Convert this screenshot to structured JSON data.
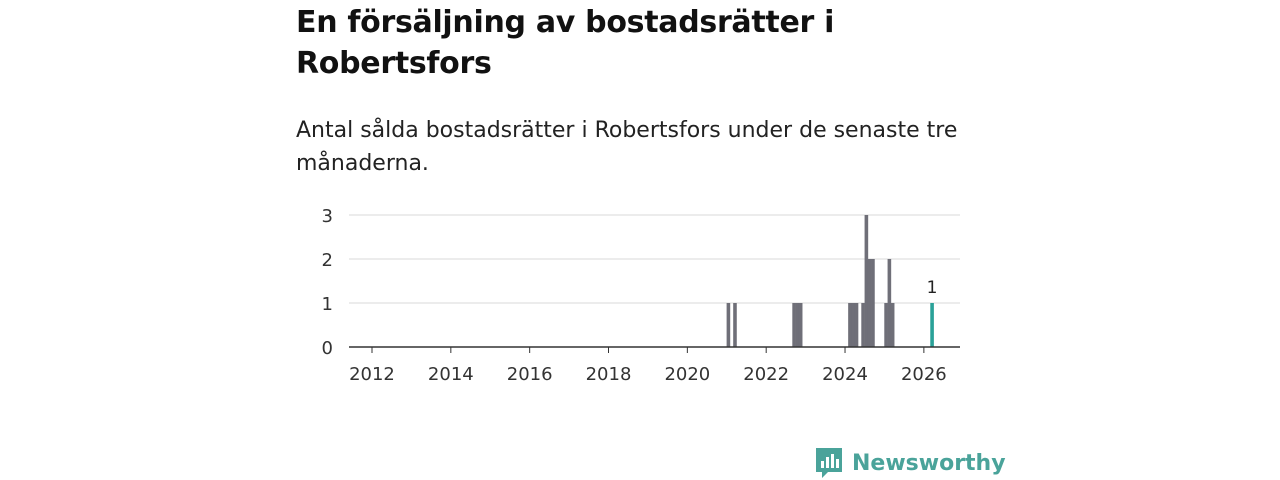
{
  "header": {
    "title": "En försäljning av bostadsrätter i Robertsfors",
    "subtitle": "Antal sålda bostadsrätter i Robertsfors under de senaste tre månaderna."
  },
  "brand": {
    "name": "Newsworthy",
    "icon": "newsworthy-logo-icon",
    "color": "#4aa39a"
  },
  "chart_data": {
    "type": "bar",
    "xlabel": "",
    "ylabel": "",
    "x_ticks": [
      "2012",
      "2014",
      "2016",
      "2018",
      "2020",
      "2022",
      "2024",
      "2026"
    ],
    "y_ticks": [
      "0",
      "1",
      "2",
      "3"
    ],
    "xlim": [
      "2011-06",
      "2026-12"
    ],
    "ylim": [
      0,
      3
    ],
    "grid": true,
    "colors": {
      "default": "#6f6f78",
      "highlight": "#2aa198"
    },
    "x": [
      "2021-01",
      "2021-03",
      "2022-09",
      "2022-10",
      "2022-11",
      "2024-02",
      "2024-03",
      "2024-04",
      "2024-06",
      "2024-07",
      "2024-08",
      "2024-09",
      "2025-01",
      "2025-02",
      "2025-03",
      "2026-03"
    ],
    "values": [
      1,
      1,
      1,
      1,
      1,
      1,
      1,
      1,
      1,
      3,
      2,
      2,
      1,
      2,
      1,
      1
    ],
    "highlight": {
      "x": "2026-03",
      "value": 1,
      "label": "1"
    }
  }
}
